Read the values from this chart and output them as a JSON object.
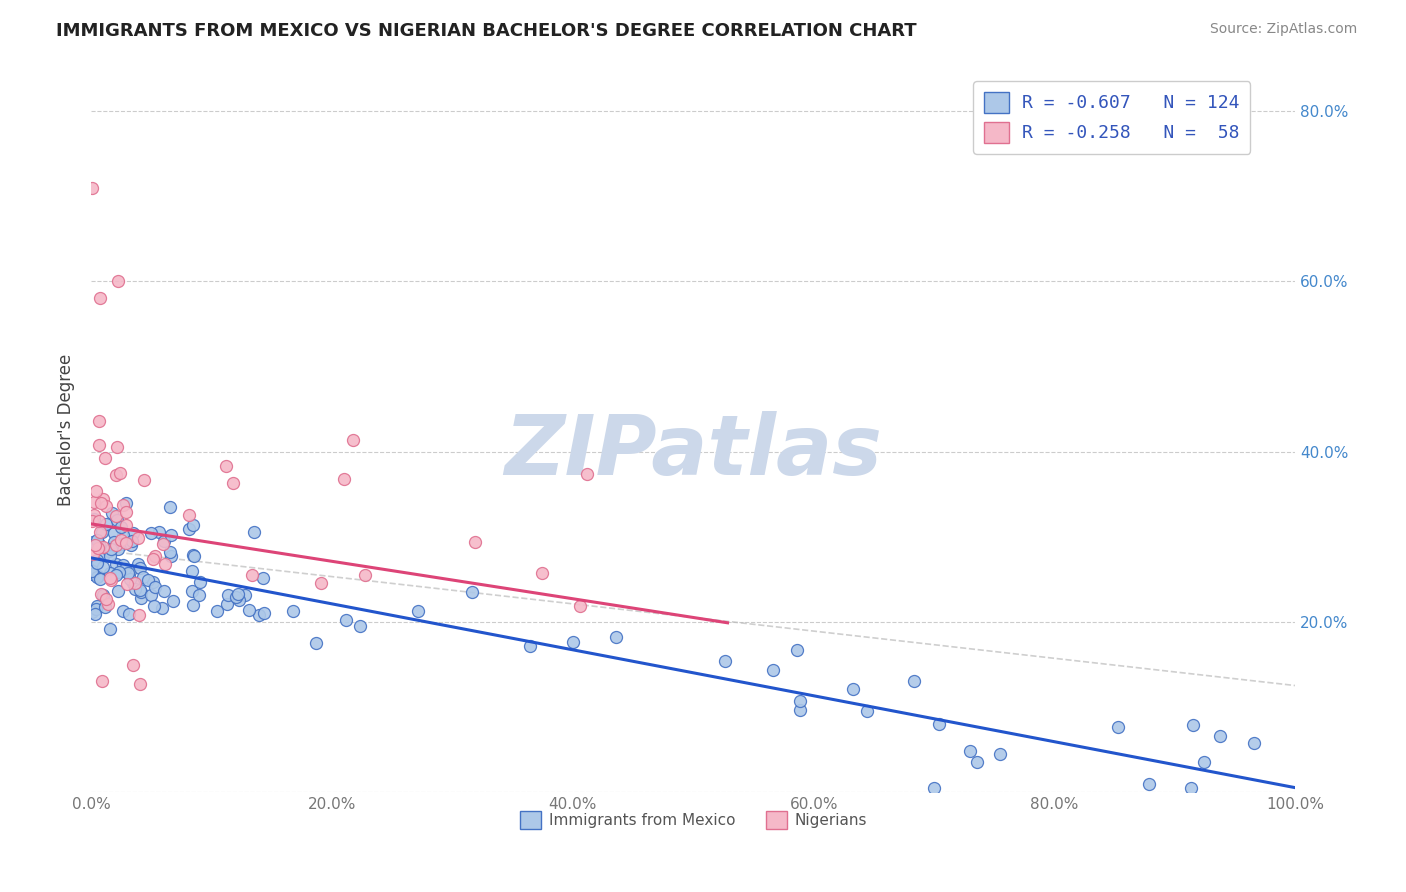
{
  "title": "IMMIGRANTS FROM MEXICO VS NIGERIAN BACHELOR'S DEGREE CORRELATION CHART",
  "source": "Source: ZipAtlas.com",
  "ylabel": "Bachelor's Degree",
  "xlim": [
    0.0,
    1.0
  ],
  "ylim": [
    0.0,
    0.85
  ],
  "xticks": [
    0.0,
    0.2,
    0.4,
    0.6,
    0.8,
    1.0
  ],
  "xtick_labels": [
    "0.0%",
    "20.0%",
    "40.0%",
    "60.0%",
    "80.0%",
    "100.0%"
  ],
  "yticks": [
    0.0,
    0.2,
    0.4,
    0.6,
    0.8
  ],
  "ytick_labels_right": [
    "",
    "20.0%",
    "40.0%",
    "60.0%",
    "80.0%"
  ],
  "legend_line1": "R = -0.607   N = 124",
  "legend_line2": "R = -0.258   N =  58",
  "blue_face": "#adc8e8",
  "blue_edge": "#4472c4",
  "pink_face": "#f5b8c8",
  "pink_edge": "#e07090",
  "trend_blue": "#2255cc",
  "trend_pink": "#dd4477",
  "trend_gray_dash": "#bbbbbb",
  "watermark_color": "#ccd8ea",
  "title_color": "#222222",
  "source_color": "#888888",
  "tick_color": "#4488cc",
  "xtick_color": "#777777",
  "ylabel_color": "#444444",
  "grid_color": "#cccccc",
  "legend_text_color": "#3355bb",
  "bottom_legend_color": "#555555"
}
